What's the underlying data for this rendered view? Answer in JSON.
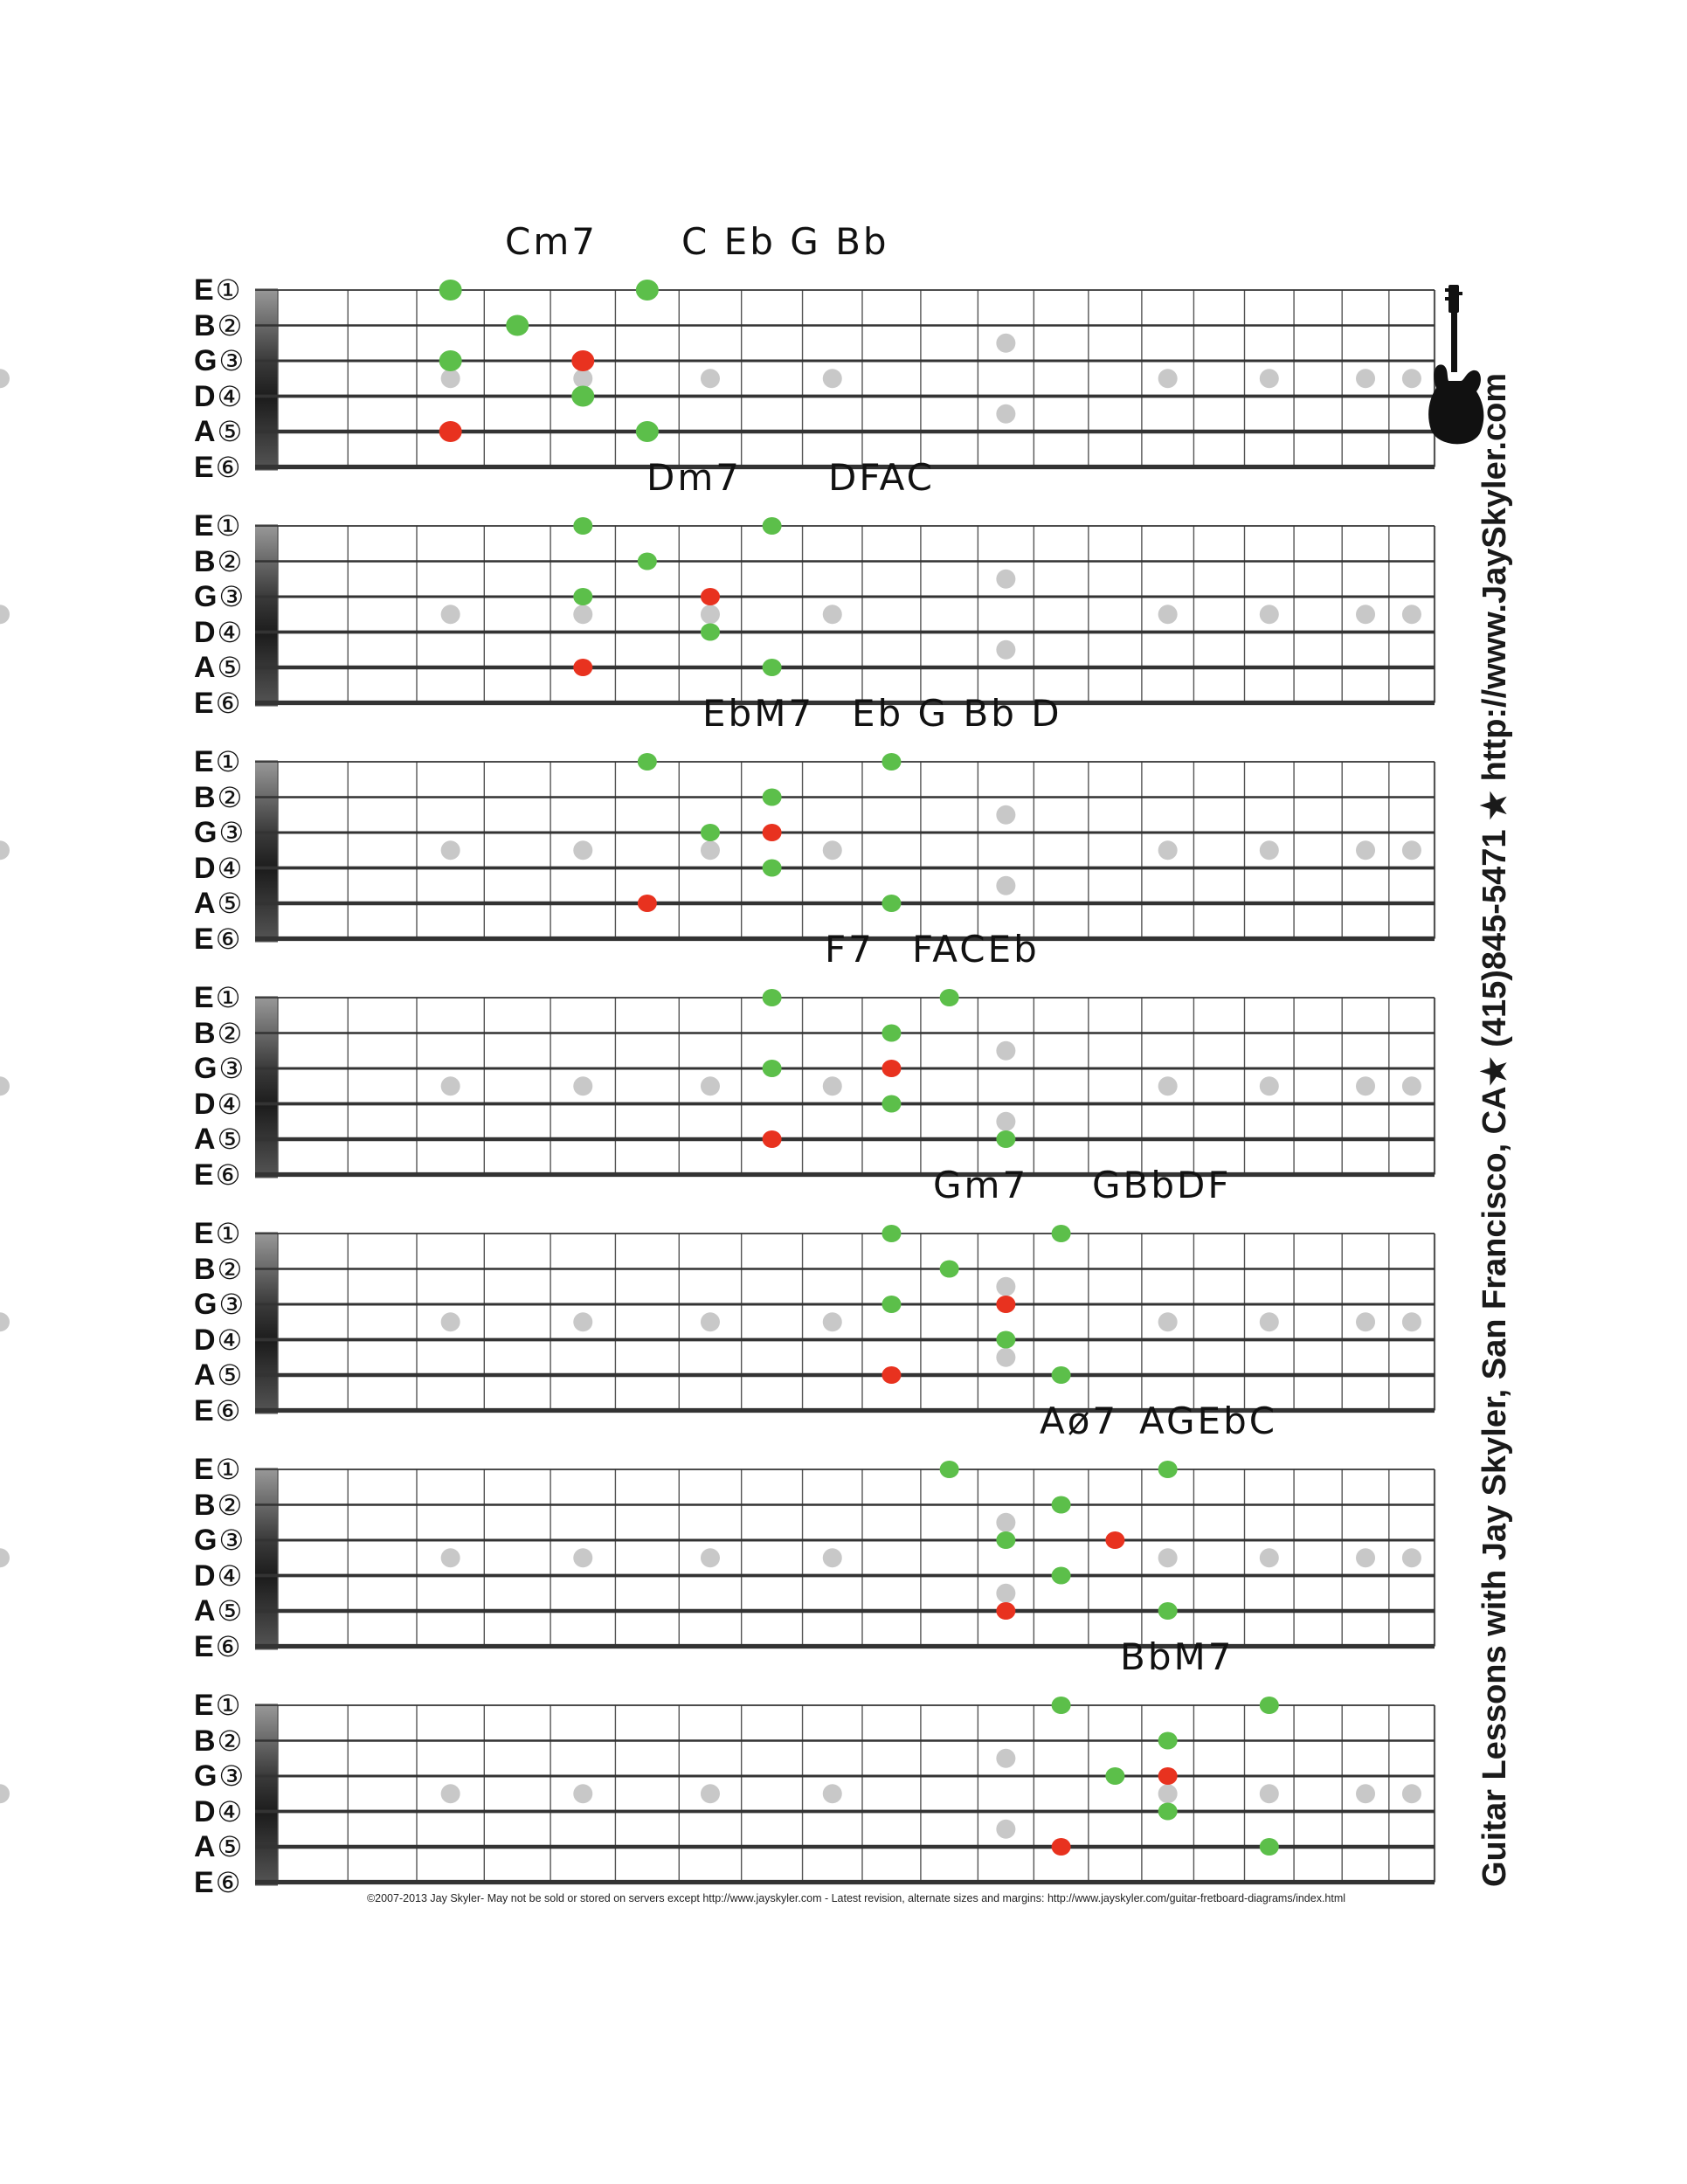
{
  "strings": [
    {
      "letter": "E",
      "number": "①"
    },
    {
      "letter": "B",
      "number": "②"
    },
    {
      "letter": "G",
      "number": "③"
    },
    {
      "letter": "D",
      "number": "④"
    },
    {
      "letter": "A",
      "number": "⑤"
    },
    {
      "letter": "E",
      "number": "⑥"
    }
  ],
  "colors": {
    "root": "#e8321f",
    "tone": "#5cbf4a",
    "marker": "#c8c8c8",
    "nut": "#5a5a5a"
  },
  "diagrams": [
    {
      "name": "Cm7",
      "notes": "C Eb G Bb",
      "dots": [
        {
          "string": 1,
          "fret": 3,
          "color": "green"
        },
        {
          "string": 1,
          "fret": 6,
          "color": "green"
        },
        {
          "string": 2,
          "fret": 4,
          "color": "green"
        },
        {
          "string": 3,
          "fret": 3,
          "color": "green"
        },
        {
          "string": 3,
          "fret": 5,
          "color": "red"
        },
        {
          "string": 4,
          "fret": 5,
          "color": "green"
        },
        {
          "string": 5,
          "fret": 3,
          "color": "red"
        },
        {
          "string": 5,
          "fret": 6,
          "color": "green"
        }
      ]
    },
    {
      "name": "Dm7",
      "notes": "DFAC",
      "dots": [
        {
          "string": 1,
          "fret": 5,
          "color": "green"
        },
        {
          "string": 1,
          "fret": 8,
          "color": "green"
        },
        {
          "string": 2,
          "fret": 6,
          "color": "green"
        },
        {
          "string": 3,
          "fret": 5,
          "color": "green"
        },
        {
          "string": 3,
          "fret": 7,
          "color": "red"
        },
        {
          "string": 4,
          "fret": 7,
          "color": "green"
        },
        {
          "string": 5,
          "fret": 5,
          "color": "red"
        },
        {
          "string": 5,
          "fret": 8,
          "color": "green"
        }
      ]
    },
    {
      "name": "EbM7",
      "notes": "Eb G Bb D",
      "dots": [
        {
          "string": 1,
          "fret": 6,
          "color": "green"
        },
        {
          "string": 1,
          "fret": 10,
          "color": "green"
        },
        {
          "string": 2,
          "fret": 8,
          "color": "green"
        },
        {
          "string": 3,
          "fret": 7,
          "color": "green"
        },
        {
          "string": 3,
          "fret": 8,
          "color": "red"
        },
        {
          "string": 4,
          "fret": 8,
          "color": "green"
        },
        {
          "string": 5,
          "fret": 6,
          "color": "red"
        },
        {
          "string": 5,
          "fret": 10,
          "color": "green"
        }
      ]
    },
    {
      "name": "F7",
      "notes": "FACEb",
      "dots": [
        {
          "string": 1,
          "fret": 8,
          "color": "green"
        },
        {
          "string": 1,
          "fret": 11,
          "color": "green"
        },
        {
          "string": 2,
          "fret": 10,
          "color": "green"
        },
        {
          "string": 3,
          "fret": 8,
          "color": "green"
        },
        {
          "string": 3,
          "fret": 10,
          "color": "red"
        },
        {
          "string": 4,
          "fret": 10,
          "color": "green"
        },
        {
          "string": 5,
          "fret": 8,
          "color": "red"
        },
        {
          "string": 5,
          "fret": 12,
          "color": "green"
        }
      ]
    },
    {
      "name": "Gm7",
      "notes": "GBbDF",
      "dots": [
        {
          "string": 1,
          "fret": 10,
          "color": "green"
        },
        {
          "string": 1,
          "fret": 13,
          "color": "green"
        },
        {
          "string": 2,
          "fret": 11,
          "color": "green"
        },
        {
          "string": 3,
          "fret": 10,
          "color": "green"
        },
        {
          "string": 3,
          "fret": 12,
          "color": "red"
        },
        {
          "string": 4,
          "fret": 12,
          "color": "green"
        },
        {
          "string": 5,
          "fret": 10,
          "color": "red"
        },
        {
          "string": 5,
          "fret": 13,
          "color": "green"
        }
      ]
    },
    {
      "name": "Aø7",
      "notes": "AGEbC",
      "dots": [
        {
          "string": 1,
          "fret": 11,
          "color": "green"
        },
        {
          "string": 1,
          "fret": 15,
          "color": "green"
        },
        {
          "string": 2,
          "fret": 13,
          "color": "green"
        },
        {
          "string": 3,
          "fret": 12,
          "color": "green"
        },
        {
          "string": 3,
          "fret": 14,
          "color": "red"
        },
        {
          "string": 4,
          "fret": 13,
          "color": "green"
        },
        {
          "string": 5,
          "fret": 12,
          "color": "red"
        },
        {
          "string": 5,
          "fret": 15,
          "color": "green"
        }
      ]
    },
    {
      "name": "BbM7",
      "notes": "",
      "dots": [
        {
          "string": 1,
          "fret": 13,
          "color": "green"
        },
        {
          "string": 1,
          "fret": 17,
          "color": "green"
        },
        {
          "string": 2,
          "fret": 15,
          "color": "green"
        },
        {
          "string": 3,
          "fret": 14,
          "color": "green"
        },
        {
          "string": 3,
          "fret": 15,
          "color": "red"
        },
        {
          "string": 4,
          "fret": 15,
          "color": "green"
        },
        {
          "string": 5,
          "fret": 13,
          "color": "red"
        },
        {
          "string": 5,
          "fret": 17,
          "color": "green"
        }
      ]
    }
  ],
  "side_text": "Guitar Lessons with Jay Skyler, San Francisco, CA★ (415)845-5471 ★ http://www.JaySkyler.com",
  "footer": "©2007-2013 Jay Skyler- May not be sold or stored on servers except http://www.jayskyler.com - Latest revision, alternate sizes and margins: http://www.jayskyler.com/guitar-fretboard-diagrams/index.html",
  "guitar_icon": "electric-guitar-icon"
}
